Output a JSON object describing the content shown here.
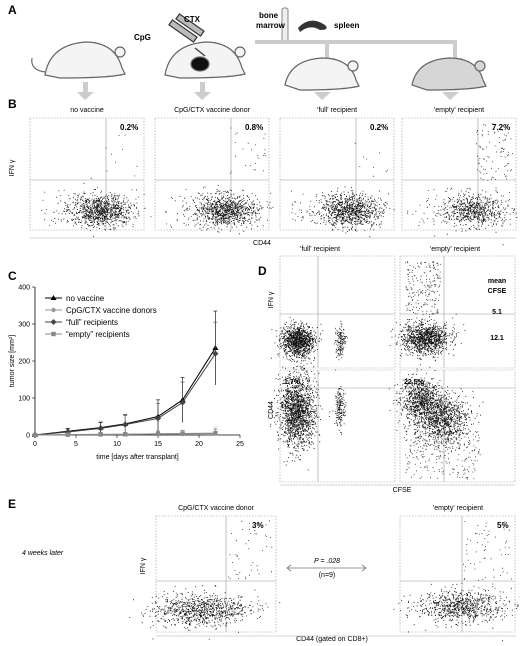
{
  "panel_letters": {
    "a": "A",
    "b": "B",
    "c": "C",
    "d": "D",
    "e": "E"
  },
  "panel_a": {
    "cpg": "CpG",
    "ctx": "CTX",
    "bone_marrow_1": "bone",
    "bone_marrow_2": "marrow",
    "spleen": "spleen"
  },
  "panel_b": {
    "groups": [
      "no vaccine",
      "CpG/CTX vaccine donor",
      "'full' recipient",
      "'empty' recipient"
    ],
    "percents": [
      "0.2%",
      "0.8%",
      "0.2%",
      "7.2%"
    ],
    "ylabel": "IFN γ",
    "xlabel": "CD44"
  },
  "panel_d": {
    "col1": "'full' recipient",
    "col2": "'empty' recipient",
    "ylabel_top": "IFN γ",
    "ylabel_bottom": "CD44",
    "xlabel": "CFSE",
    "mean_label_1": "mean",
    "mean_label_2": "CFSE",
    "mean_top": "5.1",
    "mean_bottom": "12.1",
    "pct_full": "1.7%",
    "pct_empty": "22.5%"
  },
  "panel_e": {
    "left_title": "CpG/CTX vaccine donor",
    "right_title": "'empty' recipient",
    "left_pct": "3%",
    "right_pct": "5%",
    "side_note": "4 weeks later",
    "pvalue": "P = .028",
    "n": "(n=9)",
    "ylabel": "IFN γ",
    "xlabel": "CD44 (gated on CD8+)"
  },
  "chart_data": {
    "type": "line",
    "title": "",
    "xlabel": "time [days after transplant]",
    "ylabel": "tumor size [mm²]",
    "xlim": [
      0,
      25
    ],
    "ylim": [
      0,
      400
    ],
    "xticks": [
      0,
      5,
      10,
      15,
      20,
      25
    ],
    "yticks": [
      0,
      100,
      200,
      300,
      400
    ],
    "legend_position": "top-left",
    "x": [
      0,
      4,
      8,
      11,
      15,
      18,
      22
    ],
    "series": [
      {
        "name": "no vaccine",
        "color": "#000000",
        "marker": "triangle",
        "values": [
          0,
          10,
          20,
          30,
          50,
          95,
          235
        ],
        "err": [
          0,
          8,
          15,
          25,
          45,
          60,
          100
        ]
      },
      {
        "name": "CpG/CTX vaccine donors",
        "color": "#999999",
        "marker": "circle",
        "values": [
          0,
          1,
          1,
          2,
          3,
          3,
          4
        ],
        "err": [
          0,
          2,
          3,
          4,
          8,
          10,
          15
        ]
      },
      {
        "name": "“full” recipients",
        "color": "#444444",
        "marker": "diamond",
        "values": [
          0,
          8,
          18,
          28,
          45,
          88,
          220
        ],
        "err": [
          0,
          8,
          15,
          25,
          40,
          55,
          85
        ]
      },
      {
        "name": "“empty” recipients",
        "color": "#888888",
        "marker": "square",
        "values": [
          0,
          1,
          2,
          2,
          3,
          4,
          5
        ],
        "err": [
          0,
          2,
          3,
          4,
          6,
          8,
          10
        ]
      }
    ]
  }
}
